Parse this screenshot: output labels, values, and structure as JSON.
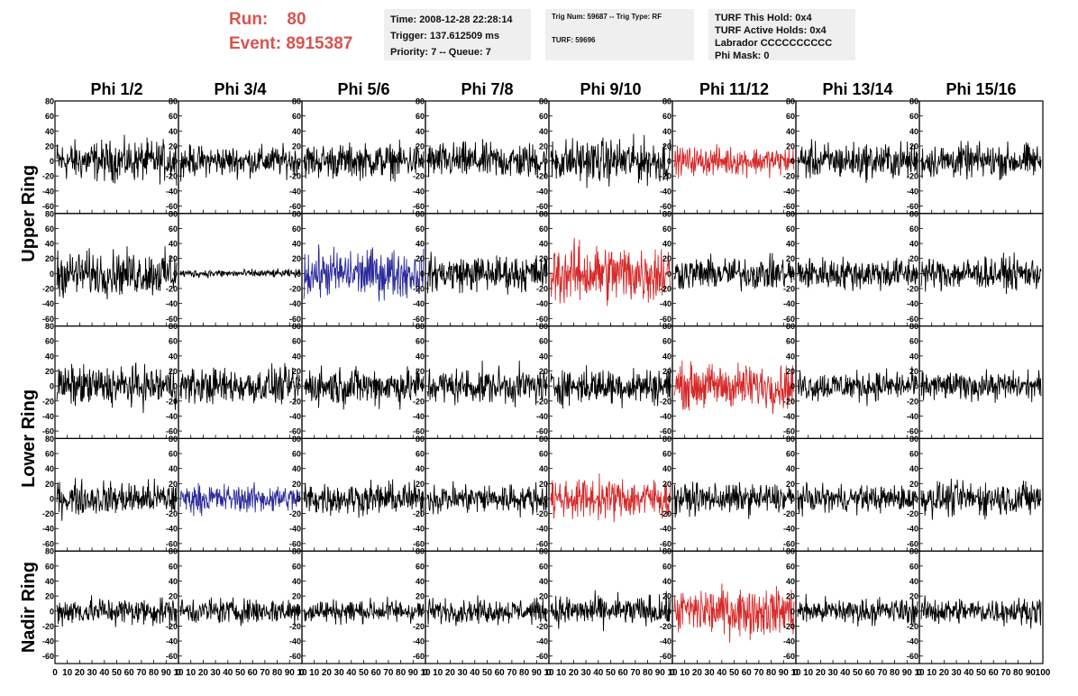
{
  "run": {
    "run_label": "Run:",
    "run_value": "80",
    "event_label": "Event:",
    "event_value": "8915387"
  },
  "info_time": {
    "time": "Time: 2008-12-28 22:28:14",
    "trigger": "Trigger: 137.612509 ms",
    "priority": "Priority: 7 -- Queue: 7"
  },
  "info_trig": {
    "trig": "Trig Num: 59687 -- Trig Type: RF",
    "turf": "TURF: 59696"
  },
  "info_turf": {
    "hold": "TURF This Hold: 0x4",
    "active": "TURF Active Holds: 0x4",
    "labrador": "Labrador CCCCCCCCCC",
    "phi_mask": "Phi Mask: 0"
  },
  "chart_data": {
    "type": "line",
    "columns": [
      "Phi 1/2",
      "Phi 3/4",
      "Phi 5/6",
      "Phi 7/8",
      "Phi 9/10",
      "Phi 11/12",
      "Phi 13/14",
      "Phi 15/16"
    ],
    "row_labels": [
      "Upper Ring",
      "Lower Ring",
      "Nadir Ring"
    ],
    "row_label_spans": [
      [
        0,
        1
      ],
      [
        2,
        3
      ],
      [
        4,
        4
      ]
    ],
    "ylim": [
      -70,
      80
    ],
    "yticks": [
      -60,
      -40,
      -20,
      0,
      20,
      40,
      60,
      80
    ],
    "xlim": [
      0,
      100
    ],
    "xticks": [
      0,
      10,
      20,
      30,
      40,
      50,
      60,
      70,
      80,
      90,
      100
    ],
    "x_tick_labels_per_column": [
      [
        "0",
        "10",
        "20",
        "30",
        "40",
        "50",
        "60",
        "70",
        "80",
        "90",
        "10"
      ],
      [
        "0",
        "10",
        "20",
        "30",
        "40",
        "50",
        "60",
        "70",
        "80",
        "90",
        "10"
      ],
      [
        "0",
        "10",
        "20",
        "30",
        "40",
        "50",
        "60",
        "70",
        "80",
        "90",
        "10"
      ],
      [
        "0",
        "10",
        "20",
        "30",
        "40",
        "50",
        "60",
        "70",
        "80",
        "90",
        "10"
      ],
      [
        "0",
        "10",
        "20",
        "30",
        "40",
        "50",
        "60",
        "70",
        "80",
        "90",
        "10"
      ],
      [
        "0",
        "10",
        "20",
        "30",
        "40",
        "50",
        "60",
        "70",
        "80",
        "90",
        "10"
      ],
      [
        "0",
        "10",
        "20",
        "30",
        "40",
        "50",
        "60",
        "70",
        "80",
        "90",
        "10"
      ],
      [
        "0",
        "10",
        "20",
        "30",
        "40",
        "50",
        "60",
        "70",
        "80",
        "90",
        "100"
      ]
    ],
    "trace_colors": {
      "normal": "#000000",
      "red": "#d62828",
      "blue": "#2a2a9a"
    },
    "panel_colors": [
      [
        "normal",
        "normal",
        "normal",
        "normal",
        "normal",
        "red",
        "normal",
        "normal"
      ],
      [
        "normal",
        "normal",
        "blue",
        "normal",
        "red",
        "normal",
        "normal",
        "normal"
      ],
      [
        "normal",
        "normal",
        "normal",
        "normal",
        "normal",
        "red",
        "normal",
        "normal"
      ],
      [
        "normal",
        "blue",
        "normal",
        "normal",
        "red",
        "normal",
        "normal",
        "normal"
      ],
      [
        "normal",
        "normal",
        "normal",
        "normal",
        "normal",
        "red",
        "normal",
        "normal"
      ]
    ],
    "panel_amplitudes": [
      [
        20,
        15,
        17,
        18,
        22,
        14,
        18,
        17
      ],
      [
        22,
        4,
        24,
        18,
        30,
        16,
        16,
        16
      ],
      [
        20,
        18,
        19,
        18,
        18,
        22,
        15,
        14
      ],
      [
        17,
        14,
        16,
        15,
        20,
        15,
        13,
        17
      ],
      [
        14,
        13,
        12,
        12,
        15,
        24,
        13,
        13
      ]
    ],
    "samples_per_trace": 260
  }
}
